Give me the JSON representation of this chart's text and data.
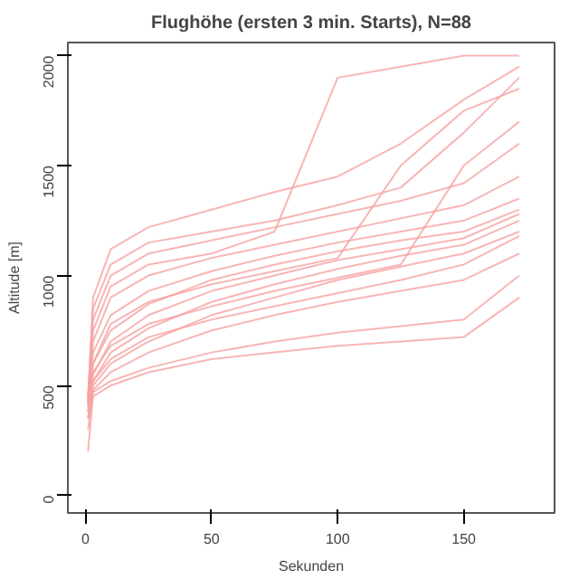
{
  "chart_data": {
    "type": "line",
    "title": "Flughöhe (ersten 3 min. Starts), N=88",
    "xlabel": "Sekunden",
    "ylabel": "Altitude [m]",
    "x": [
      1,
      3,
      10,
      25,
      50,
      75,
      100,
      125,
      150,
      172
    ],
    "xlim": [
      -7,
      186
    ],
    "ylim": [
      -80,
      2060
    ],
    "xticks": [
      0,
      50,
      100,
      150
    ],
    "yticks": [
      0,
      500,
      1000,
      1500,
      2000
    ],
    "grid": false,
    "marker": "none",
    "line_style": "solid",
    "series": [
      {
        "color": "#f6a3a3",
        "values": [
          200,
          450,
          500,
          560,
          620,
          650,
          680,
          700,
          720,
          900
        ]
      },
      {
        "color": "#f6a3a3",
        "values": [
          300,
          470,
          520,
          580,
          650,
          700,
          740,
          770,
          800,
          1000
        ]
      },
      {
        "color": "#f6a3a3",
        "values": [
          350,
          480,
          560,
          650,
          750,
          820,
          880,
          930,
          980,
          1100
        ]
      },
      {
        "color": "#f6a3a3",
        "values": [
          380,
          500,
          600,
          700,
          820,
          900,
          980,
          1040,
          1100,
          1200
        ]
      },
      {
        "color": "#f6a3a3",
        "values": [
          400,
          520,
          650,
          760,
          880,
          960,
          1030,
          1090,
          1140,
          1250
        ]
      },
      {
        "color": "#f6a3a3",
        "values": [
          420,
          550,
          700,
          820,
          930,
          1000,
          1070,
          1120,
          1170,
          1280
        ]
      },
      {
        "color": "#f6a3a3",
        "values": [
          430,
          600,
          750,
          870,
          980,
          1050,
          1110,
          1160,
          1200,
          1300
        ]
      },
      {
        "color": "#f6a3a3",
        "values": [
          450,
          650,
          820,
          930,
          1020,
          1090,
          1150,
          1200,
          1250,
          1350
        ]
      },
      {
        "color": "#f6a3a3",
        "values": [
          420,
          700,
          900,
          1000,
          1080,
          1140,
          1200,
          1260,
          1320,
          1450
        ]
      },
      {
        "color": "#f6a3a3",
        "values": [
          450,
          800,
          1000,
          1100,
          1160,
          1220,
          1280,
          1340,
          1420,
          1600
        ]
      },
      {
        "color": "#f6a3a3",
        "values": [
          430,
          900,
          1120,
          1220,
          1300,
          1380,
          1450,
          1600,
          1800,
          1950
        ]
      },
      {
        "color": "#f6a3a3",
        "values": [
          400,
          750,
          950,
          1050,
          1100,
          1200,
          1900,
          1950,
          2000,
          2000
        ]
      },
      {
        "color": "#f6a3a3",
        "values": [
          380,
          600,
          780,
          880,
          960,
          1020,
          1080,
          1500,
          1750,
          1850
        ]
      },
      {
        "color": "#f6a3a3",
        "values": [
          350,
          520,
          620,
          720,
          800,
          860,
          920,
          980,
          1050,
          1180
        ]
      },
      {
        "color": "#f6a3a3",
        "values": [
          420,
          560,
          680,
          780,
          860,
          930,
          990,
          1050,
          1500,
          1700
        ]
      },
      {
        "color": "#f6a3a3",
        "values": [
          450,
          850,
          1050,
          1150,
          1200,
          1250,
          1320,
          1400,
          1650,
          1900
        ]
      }
    ]
  }
}
